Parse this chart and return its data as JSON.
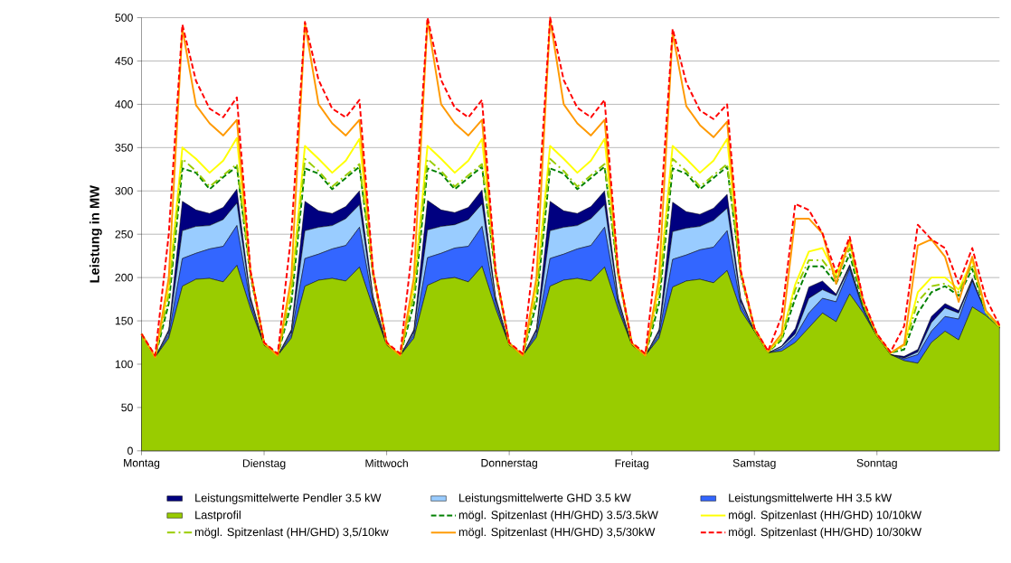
{
  "chart_data": {
    "type": "area",
    "ylabel": "Leistung in MW",
    "stacked": true,
    "grid": "y",
    "legend": "bottom",
    "categories": [
      "Montag",
      null,
      null,
      null,
      null,
      null,
      null,
      null,
      null,
      "Dienstag",
      null,
      null,
      null,
      null,
      null,
      null,
      null,
      null,
      "Mittwoch",
      null,
      null,
      null,
      null,
      null,
      null,
      null,
      null,
      "Donnerstag",
      null,
      null,
      null,
      null,
      null,
      null,
      null,
      null,
      "Freitag",
      null,
      null,
      null,
      null,
      null,
      null,
      null,
      null,
      "Samstag",
      null,
      null,
      null,
      null,
      null,
      null,
      null,
      null,
      "Sonntag",
      null,
      null,
      null,
      null,
      null,
      null,
      null,
      null,
      null
    ],
    "ylim": [
      0,
      500
    ],
    "yticks": [
      0,
      50,
      100,
      150,
      200,
      250,
      300,
      350,
      400,
      450,
      500
    ],
    "series": [
      {
        "name": "Lastprofil",
        "color": "#99cc00",
        "values": [
          135,
          108,
          130,
          190,
          198,
          199,
          195,
          214,
          164,
          122,
          110,
          130,
          190,
          197,
          199,
          196,
          212,
          165,
          122,
          110,
          130,
          191,
          198,
          200,
          195,
          213,
          164,
          122,
          110,
          131,
          190,
          197,
          199,
          196,
          212,
          163,
          122,
          110,
          130,
          189,
          196,
          198,
          194,
          208,
          162,
          138,
          113,
          115,
          125,
          142,
          159,
          149,
          181,
          159,
          132,
          111,
          104,
          101,
          125,
          138,
          128,
          166,
          156,
          142
        ]
      },
      {
        "name": "Leistungsmittelwerte HH 3.5 kW",
        "color": "#3366ff",
        "values": [
          0,
          0,
          4,
          32,
          30,
          34,
          41,
          46,
          6,
          0,
          0,
          4,
          32,
          30,
          34,
          41,
          46,
          6,
          0,
          0,
          4,
          32,
          30,
          34,
          41,
          46,
          6,
          0,
          0,
          4,
          32,
          30,
          34,
          41,
          46,
          6,
          0,
          0,
          4,
          32,
          30,
          34,
          41,
          46,
          6,
          0,
          0,
          3,
          7,
          17,
          17,
          23,
          29,
          3,
          0,
          0,
          2,
          10,
          13,
          17,
          24,
          30,
          3,
          0
        ]
      },
      {
        "name": "Leistungsmittelwerte GHD 3.5 kW",
        "color": "#99ccff",
        "values": [
          0,
          0,
          3,
          32,
          31,
          27,
          31,
          26,
          4,
          0,
          0,
          3,
          32,
          31,
          27,
          31,
          26,
          4,
          0,
          0,
          3,
          32,
          31,
          27,
          31,
          26,
          4,
          0,
          0,
          3,
          32,
          31,
          27,
          31,
          26,
          4,
          0,
          0,
          3,
          32,
          31,
          27,
          31,
          26,
          4,
          0,
          0,
          2,
          3,
          17,
          10,
          7,
          2,
          2,
          0,
          0,
          1,
          3,
          10,
          10,
          7,
          1,
          0,
          0
        ]
      },
      {
        "name": "Leistungsmittelwerte Pendler 3.5 kW",
        "color": "#000080",
        "values": [
          0,
          0,
          3,
          34,
          19,
          14,
          14,
          16,
          4,
          0,
          0,
          3,
          34,
          19,
          14,
          14,
          16,
          4,
          0,
          0,
          3,
          34,
          19,
          14,
          14,
          16,
          4,
          0,
          0,
          3,
          34,
          19,
          14,
          14,
          16,
          4,
          0,
          0,
          3,
          34,
          19,
          14,
          14,
          16,
          4,
          0,
          0,
          1,
          6,
          13,
          10,
          2,
          3,
          1,
          0,
          0,
          2,
          3,
          7,
          5,
          3,
          2,
          0,
          0
        ]
      },
      {
        "name": "mögl. Spitzenlast (HH/GHD) 3.5/3.5kW",
        "type": "line",
        "line_style": "dashed",
        "color": "#008000",
        "values": [
          135,
          108,
          170,
          326,
          321,
          302,
          316,
          328,
          202,
          124,
          110,
          170,
          326,
          320,
          302,
          315,
          328,
          203,
          124,
          110,
          170,
          326,
          320,
          302,
          315,
          328,
          203,
          124,
          110,
          170,
          326,
          320,
          302,
          315,
          328,
          203,
          124,
          110,
          170,
          326,
          320,
          302,
          315,
          328,
          203,
          140,
          114,
          128,
          176,
          213,
          213,
          193,
          227,
          167,
          134,
          113,
          117,
          159,
          183,
          190,
          179,
          210,
          159,
          143
        ]
      },
      {
        "name": "mögl. Spitzenlast (HH/GHD) 10/10kW",
        "type": "line",
        "line_style": "solid",
        "color": "#ffff00",
        "values": [
          135,
          108,
          190,
          350,
          337,
          321,
          335,
          361,
          207,
          124,
          110,
          190,
          352,
          337,
          321,
          335,
          360,
          207,
          124,
          110,
          190,
          352,
          337,
          321,
          335,
          360,
          207,
          124,
          110,
          190,
          352,
          337,
          321,
          335,
          360,
          207,
          124,
          110,
          190,
          352,
          337,
          321,
          335,
          360,
          207,
          141,
          114,
          131,
          192,
          230,
          234,
          203,
          240,
          171,
          134,
          113,
          122,
          183,
          200,
          200,
          186,
          220,
          160,
          143
        ]
      },
      {
        "name": "mögl. Spitzenlast (HH/GHD) 3,5/10kw",
        "type": "line",
        "line_style": "dashdot",
        "color": "#99cc00",
        "values": [
          135,
          108,
          180,
          337,
          323,
          305,
          318,
          331,
          205,
          124,
          110,
          180,
          337,
          323,
          305,
          318,
          331,
          205,
          124,
          110,
          180,
          337,
          323,
          305,
          318,
          331,
          205,
          124,
          110,
          180,
          337,
          323,
          305,
          318,
          331,
          205,
          124,
          110,
          180,
          337,
          323,
          305,
          318,
          331,
          205,
          140,
          114,
          130,
          186,
          220,
          220,
          200,
          234,
          169,
          134,
          113,
          120,
          172,
          190,
          193,
          183,
          215,
          159,
          143
        ]
      },
      {
        "name": "mögl. Spitzenlast (HH/GHD) 3,5/30kW",
        "type": "line",
        "line_style": "solid",
        "color": "#ff9900",
        "values": [
          135,
          108,
          200,
          487,
          399,
          378,
          364,
          382,
          206,
          124,
          110,
          200,
          493,
          400,
          378,
          364,
          382,
          206,
          124,
          110,
          200,
          497,
          400,
          378,
          364,
          382,
          206,
          124,
          110,
          200,
          498,
          400,
          378,
          364,
          382,
          206,
          124,
          110,
          200,
          482,
          398,
          376,
          362,
          380,
          206,
          141,
          115,
          135,
          268,
          268,
          251,
          193,
          244,
          172,
          134,
          113,
          123,
          237,
          244,
          224,
          172,
          224,
          162,
          144
        ]
      },
      {
        "name": "mögl. Spitzenlast (HH/GHD) 10/30kW",
        "type": "line",
        "line_style": "dashed",
        "color": "#ff0000",
        "values": [
          135,
          110,
          250,
          492,
          427,
          395,
          385,
          408,
          208,
          125,
          112,
          250,
          495,
          428,
          395,
          385,
          405,
          208,
          125,
          112,
          250,
          500,
          428,
          396,
          385,
          405,
          208,
          125,
          112,
          250,
          500,
          428,
          396,
          385,
          405,
          208,
          125,
          112,
          250,
          487,
          425,
          393,
          383,
          400,
          208,
          142,
          115,
          155,
          285,
          278,
          251,
          206,
          247,
          174,
          135,
          114,
          144,
          261,
          244,
          234,
          193,
          234,
          176,
          145
        ]
      }
    ]
  }
}
